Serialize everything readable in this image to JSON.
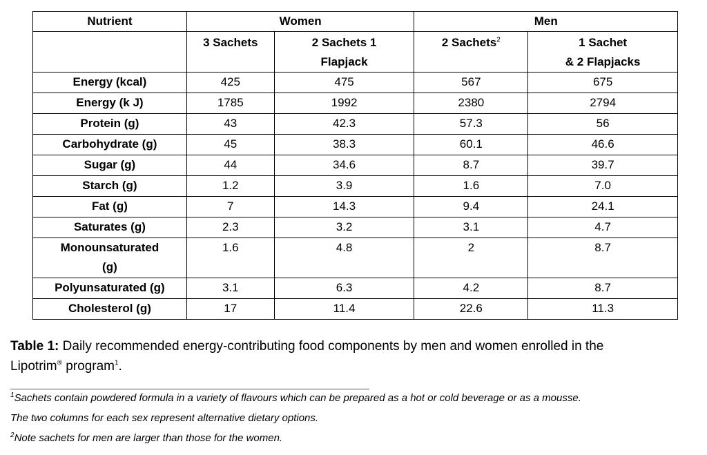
{
  "table": {
    "header": {
      "nutrient": "Nutrient",
      "women": "Women",
      "men": "Men",
      "col1": "3 Sachets",
      "col2_line1": "2 Sachets 1",
      "col2_line2": "Flapjack",
      "col3": "2 Sachets",
      "col3_sup": "2",
      "col4_line1": "1 Sachet",
      "col4_line2": "& 2 Flapjacks"
    },
    "rows": [
      {
        "label": "Energy (kcal)",
        "v": [
          "425",
          "475",
          "567",
          "675"
        ]
      },
      {
        "label": "Energy (k J)",
        "v": [
          "1785",
          "1992",
          "2380",
          "2794"
        ]
      },
      {
        "label": "Protein (g)",
        "v": [
          "43",
          "42.3",
          "57.3",
          "56"
        ]
      },
      {
        "label": "Carbohydrate (g)",
        "v": [
          "45",
          "38.3",
          "60.1",
          "46.6"
        ]
      },
      {
        "label": "Sugar (g)",
        "v": [
          "44",
          "34.6",
          "8.7",
          "39.7"
        ]
      },
      {
        "label": "Starch (g)",
        "v": [
          "1.2",
          "3.9",
          "1.6",
          "7.0"
        ]
      },
      {
        "label": "Fat (g)",
        "v": [
          "7",
          "14.3",
          "9.4",
          "24.1"
        ]
      },
      {
        "label": "Saturates (g)",
        "v": [
          "2.3",
          "3.2",
          "3.1",
          "4.7"
        ]
      },
      {
        "label": "Monounsaturated",
        "label2": "(g)",
        "v": [
          "1.6",
          "4.8",
          "2",
          "8.7"
        ]
      },
      {
        "label": "Polyunsaturated (g)",
        "v": [
          "3.1",
          "6.3",
          "4.2",
          "8.7"
        ]
      },
      {
        "label": "Cholesterol (g)",
        "v": [
          "17",
          "11.4",
          "22.6",
          "11.3"
        ]
      }
    ]
  },
  "caption": {
    "label": "Table 1:",
    "text1": " Daily recommended energy-contributing food components by men and women enrolled in the",
    "text2a": "Lipotrim",
    "reg": "®",
    "text2b": " program",
    "sup": "1",
    "text2c": "."
  },
  "notes": {
    "n1_sup": "1",
    "n1": "Sachets contain powdered formula in a variety of flavours which can be prepared as a hot or cold beverage or as a mousse.",
    "n1b": "The two columns for each sex represent alternative dietary options.",
    "n2_sup": "2",
    "n2": "Note sachets for men are larger than those for the women."
  }
}
